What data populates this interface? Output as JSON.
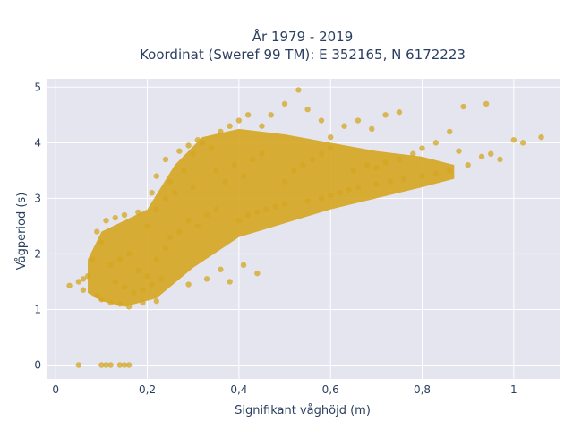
{
  "chart_data": {
    "type": "scatter",
    "title_line1": "År 1979 - 2019",
    "title_line2": "Koordinat (Sweref 99 TM): E 352165, N 6172223",
    "xlabel": "Signifikant våghöjd (m)",
    "ylabel": "Vågperiod (s)",
    "xlim": [
      -0.02,
      1.1
    ],
    "ylim": [
      -0.25,
      5.15
    ],
    "x_ticks": [
      0,
      0.2,
      0.4,
      0.6,
      0.8,
      1
    ],
    "x_tick_labels": [
      "0",
      "0,2",
      "0,4",
      "0,6",
      "0,8",
      "1"
    ],
    "y_ticks": [
      0,
      1,
      2,
      3,
      4,
      5
    ],
    "y_tick_labels": [
      "0",
      "1",
      "2",
      "3",
      "4",
      "5"
    ],
    "grid": true,
    "marker_color": "#d4a520",
    "background_color": "#e5e5f0",
    "series": [
      {
        "points": [
          [
            0.05,
            0.0
          ],
          [
            0.1,
            0.0
          ],
          [
            0.11,
            0.0
          ],
          [
            0.12,
            0.0
          ],
          [
            0.14,
            0.0
          ],
          [
            0.15,
            0.0
          ],
          [
            0.16,
            0.0
          ],
          [
            0.03,
            1.43
          ],
          [
            0.05,
            1.5
          ],
          [
            0.06,
            1.35
          ],
          [
            0.08,
            1.9
          ],
          [
            0.06,
            1.55
          ],
          [
            0.09,
            1.25
          ],
          [
            0.07,
            1.6
          ],
          [
            0.1,
            1.18
          ],
          [
            0.12,
            1.12
          ],
          [
            0.14,
            1.1
          ],
          [
            0.16,
            1.05
          ],
          [
            0.19,
            1.12
          ],
          [
            0.22,
            1.15
          ],
          [
            0.1,
            2.2
          ],
          [
            0.09,
            2.4
          ],
          [
            0.11,
            2.6
          ],
          [
            0.13,
            2.65
          ],
          [
            0.15,
            2.7
          ],
          [
            0.18,
            2.75
          ],
          [
            0.12,
            1.8
          ],
          [
            0.14,
            1.9
          ],
          [
            0.16,
            2.0
          ],
          [
            0.18,
            1.7
          ],
          [
            0.2,
            1.6
          ],
          [
            0.22,
            1.9
          ],
          [
            0.24,
            2.1
          ],
          [
            0.13,
            1.5
          ],
          [
            0.15,
            1.4
          ],
          [
            0.17,
            1.3
          ],
          [
            0.19,
            1.35
          ],
          [
            0.21,
            1.45
          ],
          [
            0.23,
            1.55
          ],
          [
            0.2,
            2.5
          ],
          [
            0.22,
            2.8
          ],
          [
            0.24,
            3.0
          ],
          [
            0.25,
            3.3
          ],
          [
            0.26,
            3.1
          ],
          [
            0.28,
            3.5
          ],
          [
            0.3,
            3.2
          ],
          [
            0.25,
            2.3
          ],
          [
            0.27,
            2.4
          ],
          [
            0.29,
            2.6
          ],
          [
            0.31,
            2.5
          ],
          [
            0.33,
            2.7
          ],
          [
            0.35,
            2.8
          ],
          [
            0.3,
            3.8
          ],
          [
            0.32,
            4.0
          ],
          [
            0.34,
            3.9
          ],
          [
            0.36,
            4.2
          ],
          [
            0.38,
            4.3
          ],
          [
            0.4,
            4.4
          ],
          [
            0.42,
            4.5
          ],
          [
            0.35,
            3.5
          ],
          [
            0.37,
            3.3
          ],
          [
            0.39,
            3.6
          ],
          [
            0.41,
            3.4
          ],
          [
            0.43,
            3.7
          ],
          [
            0.45,
            3.8
          ],
          [
            0.4,
            2.6
          ],
          [
            0.42,
            2.7
          ],
          [
            0.44,
            2.75
          ],
          [
            0.46,
            2.8
          ],
          [
            0.48,
            2.85
          ],
          [
            0.5,
            2.9
          ],
          [
            0.45,
            4.3
          ],
          [
            0.47,
            4.5
          ],
          [
            0.5,
            4.7
          ],
          [
            0.53,
            4.95
          ],
          [
            0.55,
            4.6
          ],
          [
            0.58,
            4.4
          ],
          [
            0.5,
            3.3
          ],
          [
            0.52,
            3.5
          ],
          [
            0.54,
            3.6
          ],
          [
            0.56,
            3.7
          ],
          [
            0.58,
            3.8
          ],
          [
            0.6,
            3.9
          ],
          [
            0.55,
            2.95
          ],
          [
            0.58,
            3.0
          ],
          [
            0.6,
            3.05
          ],
          [
            0.62,
            3.1
          ],
          [
            0.64,
            3.15
          ],
          [
            0.66,
            3.2
          ],
          [
            0.6,
            4.1
          ],
          [
            0.63,
            4.3
          ],
          [
            0.66,
            4.4
          ],
          [
            0.69,
            4.25
          ],
          [
            0.72,
            4.5
          ],
          [
            0.75,
            4.55
          ],
          [
            0.65,
            3.5
          ],
          [
            0.68,
            3.6
          ],
          [
            0.7,
            3.55
          ],
          [
            0.72,
            3.65
          ],
          [
            0.75,
            3.7
          ],
          [
            0.78,
            3.8
          ],
          [
            0.7,
            3.25
          ],
          [
            0.73,
            3.3
          ],
          [
            0.76,
            3.35
          ],
          [
            0.8,
            3.4
          ],
          [
            0.83,
            3.45
          ],
          [
            0.86,
            3.5
          ],
          [
            0.8,
            3.9
          ],
          [
            0.83,
            4.0
          ],
          [
            0.86,
            4.2
          ],
          [
            0.88,
            3.85
          ],
          [
            0.9,
            3.6
          ],
          [
            0.93,
            3.75
          ],
          [
            0.95,
            3.8
          ],
          [
            0.97,
            3.7
          ],
          [
            1.0,
            4.05
          ],
          [
            1.02,
            4.0
          ],
          [
            1.06,
            4.1
          ],
          [
            0.89,
            4.65
          ],
          [
            0.94,
            4.7
          ],
          [
            0.36,
            1.72
          ],
          [
            0.41,
            1.8
          ],
          [
            0.44,
            1.65
          ],
          [
            0.38,
            1.5
          ],
          [
            0.33,
            1.55
          ],
          [
            0.29,
            1.45
          ],
          [
            0.31,
            4.05
          ],
          [
            0.29,
            3.95
          ],
          [
            0.27,
            3.85
          ],
          [
            0.24,
            3.7
          ],
          [
            0.22,
            3.4
          ],
          [
            0.21,
            3.1
          ]
        ]
      }
    ]
  }
}
